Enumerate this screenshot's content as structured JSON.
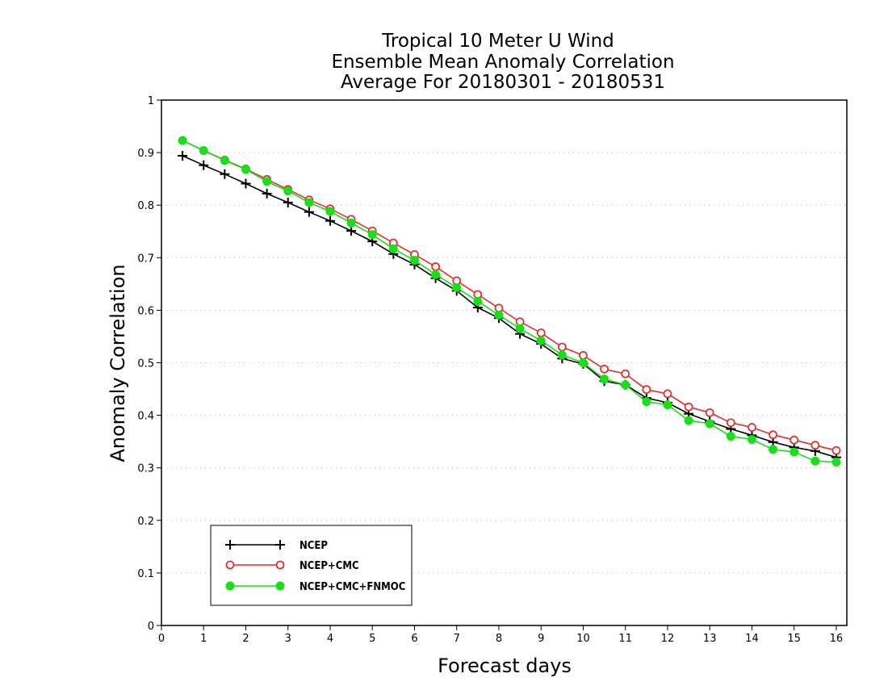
{
  "colors": {
    "background": "#ffffff",
    "axis": "#000000",
    "grid": "#b0b0b0"
  },
  "chart_data": {
    "type": "line",
    "title": [
      "Tropical 10 Meter U Wind",
      "Ensemble Mean Anomaly Correlation",
      "Average For 20180301 - 20180531"
    ],
    "xlabel": "Forecast days",
    "ylabel": "Anomaly Correlation",
    "xlim": [
      0,
      16.25
    ],
    "ylim": [
      0,
      1
    ],
    "xticks": [
      0,
      1,
      2,
      3,
      4,
      5,
      6,
      7,
      8,
      9,
      10,
      11,
      12,
      13,
      14,
      15,
      16
    ],
    "xtick_labels": [
      "0",
      "1",
      "2",
      "3",
      "4",
      "5",
      "6",
      "7",
      "8",
      "9",
      "10",
      "11",
      "12",
      "13",
      "14",
      "15",
      "16"
    ],
    "yticks": [
      0,
      0.1,
      0.2,
      0.3,
      0.4,
      0.5,
      0.6,
      0.7,
      0.8,
      0.9,
      1
    ],
    "ytick_labels": [
      "0",
      "0.1",
      "0.2",
      "0.3",
      "0.4",
      "0.5",
      "0.6",
      "0.7",
      "0.8",
      "0.9",
      "1"
    ],
    "grid": "horizontal dotted",
    "legend_position": "bottom-left",
    "x": [
      0.5,
      1.0,
      1.5,
      2.0,
      2.5,
      3.0,
      3.5,
      4.0,
      4.5,
      5.0,
      5.5,
      6.0,
      6.5,
      7.0,
      7.5,
      8.0,
      8.5,
      9.0,
      9.5,
      10.0,
      10.5,
      11.0,
      11.5,
      12.0,
      12.5,
      13.0,
      13.5,
      14.0,
      14.5,
      15.0,
      15.5,
      16.0
    ],
    "series": [
      {
        "name": "NCEP",
        "color": "#000000",
        "marker": "plus",
        "values": [
          0.894,
          0.876,
          0.859,
          0.841,
          0.822,
          0.805,
          0.787,
          0.77,
          0.751,
          0.731,
          0.707,
          0.687,
          0.661,
          0.637,
          0.605,
          0.585,
          0.555,
          0.536,
          0.508,
          0.498,
          0.465,
          0.458,
          0.433,
          0.424,
          0.403,
          0.388,
          0.374,
          0.362,
          0.349,
          0.339,
          0.332,
          0.32
        ]
      },
      {
        "name": "NCEP+CMC",
        "color": "#e03030",
        "marker": "open-circle",
        "values": [
          0.923,
          0.904,
          0.886,
          0.869,
          0.849,
          0.83,
          0.81,
          0.793,
          0.773,
          0.751,
          0.728,
          0.706,
          0.683,
          0.656,
          0.63,
          0.604,
          0.578,
          0.557,
          0.53,
          0.514,
          0.488,
          0.479,
          0.449,
          0.441,
          0.416,
          0.405,
          0.386,
          0.377,
          0.363,
          0.353,
          0.343,
          0.333
        ]
      },
      {
        "name": "NCEP+CMC+FNMOC",
        "color": "#18e018",
        "marker": "filled-circle",
        "values": [
          0.923,
          0.904,
          0.885,
          0.868,
          0.845,
          0.827,
          0.805,
          0.788,
          0.766,
          0.744,
          0.717,
          0.695,
          0.668,
          0.643,
          0.617,
          0.591,
          0.565,
          0.542,
          0.515,
          0.5,
          0.469,
          0.458,
          0.426,
          0.42,
          0.39,
          0.384,
          0.36,
          0.354,
          0.335,
          0.33,
          0.313,
          0.311
        ]
      }
    ]
  }
}
